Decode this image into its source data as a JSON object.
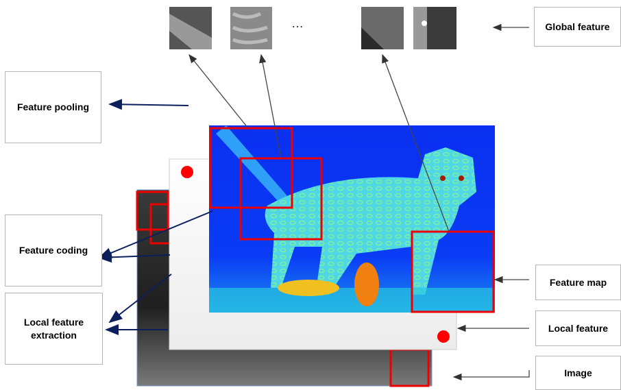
{
  "labels": {
    "global_feature": "Global feature",
    "feature_pooling": "Feature pooling",
    "feature_coding": "Feature coding",
    "local_feature_extraction": "Local feature extraction",
    "feature_map": "Feature map",
    "local_feature": "Local feature",
    "image": "Image"
  },
  "ellipsis": "…"
}
